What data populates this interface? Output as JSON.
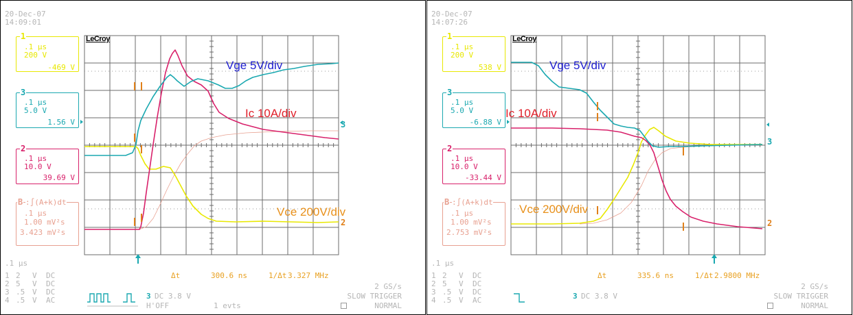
{
  "colors": {
    "ch1": "#e8e800",
    "ch3": "#1aa8b0",
    "ch2": "#d8206a",
    "math": "#e8a090",
    "grid": "#6b6b6b",
    "vge_label": "#1e1ecf",
    "ic_label": "#e0202a",
    "vce_label": "#e8901a",
    "marker": "#e0801a",
    "trigger": "#1aa8b0",
    "gray_text": "#b5b5b5"
  },
  "screens": [
    {
      "date": "20-Dec-07",
      "time": "14:09:01",
      "brand": "LeCroy",
      "channels": {
        "ch1": {
          "num": "1",
          "timebase": ".1 µs",
          "scale": "200 V",
          "value": "-469 V"
        },
        "ch3": {
          "num": "3",
          "timebase": ".1 µs",
          "scale": "5.0 V",
          "value": "1.56 V"
        },
        "ch2": {
          "num": "2",
          "timebase": ".1 µs",
          "scale": "10.0 V",
          "value": "39.69 V"
        },
        "math": {
          "num": "B",
          "formula": ":∫(A+k)dt",
          "timebase": ".1 µs",
          "scale": "1.00 mV²s",
          "value": "3.423 mV²s"
        }
      },
      "labels": {
        "vge": "Vge 5V/div",
        "ic": "Ic 10A/div",
        "vce": "Vce 200V/div"
      },
      "measure": {
        "delta_label": "Δt",
        "delta_value": "300.6 ns",
        "inv_label": "1/Δt",
        "inv_value": "3.327 MHz"
      },
      "bottom": {
        "timebase": ".1 µs",
        "rows": [
          {
            "ch": "1",
            "val": "2",
            "unit": "V",
            "coupling": "DC"
          },
          {
            "ch": "2",
            "val": "5",
            "unit": "V",
            "coupling": "DC"
          },
          {
            "ch": "3",
            "val": ".5",
            "unit": "V",
            "coupling": "DC"
          },
          {
            "ch": "4",
            "val": ".5",
            "unit": "V",
            "coupling": "AC"
          }
        ],
        "trig_ch": "3",
        "trig_text": "DC 3.8 V",
        "hoff": "H'OFF",
        "events": "1 evts",
        "sample_rate": "2 GS/s",
        "trigger_mode": "SLOW TRIGGER",
        "acq_mode": "NORMAL",
        "trig_icon": "pulse-train-icon"
      },
      "traces": {
        "vge": [
          [
            0,
            226
          ],
          [
            60,
            226
          ],
          [
            70,
            222
          ],
          [
            75,
            210
          ],
          [
            78,
            190
          ],
          [
            82,
            175
          ],
          [
            90,
            158
          ],
          [
            100,
            140
          ],
          [
            110,
            125
          ],
          [
            120,
            112
          ],
          [
            125,
            108
          ],
          [
            130,
            112
          ],
          [
            135,
            117
          ],
          [
            145,
            125
          ],
          [
            155,
            118
          ],
          [
            165,
            114
          ],
          [
            180,
            117
          ],
          [
            195,
            123
          ],
          [
            205,
            128
          ],
          [
            215,
            128
          ],
          [
            225,
            124
          ],
          [
            235,
            117
          ],
          [
            245,
            112
          ],
          [
            260,
            108
          ],
          [
            275,
            105
          ],
          [
            290,
            101
          ],
          [
            305,
            99
          ],
          [
            320,
            96
          ],
          [
            340,
            93
          ],
          [
            360,
            92
          ],
          [
            370,
            91
          ]
        ],
        "ic": [
          [
            0,
            334
          ],
          [
            80,
            334
          ],
          [
            82,
            330
          ],
          [
            86,
            310
          ],
          [
            90,
            280
          ],
          [
            95,
            245
          ],
          [
            100,
            210
          ],
          [
            106,
            170
          ],
          [
            112,
            135
          ],
          [
            118,
            105
          ],
          [
            124,
            85
          ],
          [
            128,
            77
          ],
          [
            132,
            72
          ],
          [
            136,
            80
          ],
          [
            142,
            95
          ],
          [
            150,
            110
          ],
          [
            160,
            118
          ],
          [
            170,
            123
          ],
          [
            180,
            132
          ],
          [
            188,
            150
          ],
          [
            196,
            163
          ],
          [
            210,
            172
          ],
          [
            230,
            180
          ],
          [
            260,
            188
          ],
          [
            290,
            192
          ],
          [
            320,
            196
          ],
          [
            350,
            200
          ],
          [
            370,
            202
          ]
        ],
        "vce": [
          [
            0,
            213
          ],
          [
            75,
            213
          ],
          [
            78,
            216
          ],
          [
            82,
            226
          ],
          [
            88,
            238
          ],
          [
            94,
            246
          ],
          [
            104,
            246
          ],
          [
            115,
            242
          ],
          [
            125,
            244
          ],
          [
            132,
            255
          ],
          [
            140,
            270
          ],
          [
            148,
            285
          ],
          [
            158,
            300
          ],
          [
            170,
            312
          ],
          [
            180,
            318
          ],
          [
            192,
            322
          ],
          [
            220,
            323
          ],
          [
            260,
            322
          ],
          [
            300,
            323
          ],
          [
            340,
            324
          ],
          [
            370,
            323
          ]
        ],
        "math": [
          [
            80,
            334
          ],
          [
            90,
            330
          ],
          [
            100,
            318
          ],
          [
            110,
            298
          ],
          [
            120,
            276
          ],
          [
            130,
            256
          ],
          [
            140,
            238
          ],
          [
            150,
            224
          ],
          [
            160,
            212
          ],
          [
            170,
            205
          ],
          [
            185,
            200
          ],
          [
            205,
            196
          ],
          [
            235,
            193
          ],
          [
            280,
            191
          ],
          [
            330,
            190
          ],
          [
            370,
            190
          ]
        ]
      },
      "markers": [
        [
          83,
          125
        ],
        [
          83,
          217
        ],
        [
          83,
          317
        ],
        [
          195,
          125
        ],
        [
          195,
          200
        ],
        [
          195,
          323
        ]
      ],
      "trigger_x": 78,
      "right_arrow_y": 175,
      "right_markers": [
        {
          "num": "3",
          "y": 175
        },
        {
          "num": "2",
          "y": 318
        }
      ],
      "label_pos": {
        "vge": [
          205,
          88
        ],
        "ic": [
          235,
          158
        ],
        "vce": [
          282,
          302
        ]
      }
    },
    {
      "date": "20-Dec-07",
      "time": "14:07:26",
      "brand": "LeCroy",
      "channels": {
        "ch1": {
          "num": "1",
          "timebase": ".1 µs",
          "scale": "200 V",
          "value": "538 V"
        },
        "ch3": {
          "num": "3",
          "timebase": ".1 µs",
          "scale": "5.0 V",
          "value": "-6.88 V"
        },
        "ch2": {
          "num": "2",
          "timebase": ".1 µs",
          "scale": "10.0 V",
          "value": "-33.44 V"
        },
        "math": {
          "num": "B",
          "formula": ":∫(A+k)dt",
          "timebase": ".1 µs",
          "scale": "1.00 mV²s",
          "value": "2.753 mV²s"
        }
      },
      "labels": {
        "vge": "Vge 5V/div",
        "ic": "Ic 10A/div",
        "vce": "Vce 200V/div"
      },
      "measure": {
        "delta_label": "Δt",
        "delta_value": "335.6 ns",
        "inv_label": "1/Δt",
        "inv_value": "2.9800 MHz"
      },
      "bottom": {
        "timebase": ".1 µs",
        "rows": [
          {
            "ch": "1",
            "val": "2",
            "unit": "V",
            "coupling": "DC"
          },
          {
            "ch": "2",
            "val": "5",
            "unit": "V",
            "coupling": "DC"
          },
          {
            "ch": "3",
            "val": ".5",
            "unit": "V",
            "coupling": "DC"
          },
          {
            "ch": "4",
            "val": ".5",
            "unit": "V",
            "coupling": "AC"
          }
        ],
        "trig_ch": "3",
        "trig_text": "DC 3.8 V",
        "hoff": "",
        "events": "",
        "sample_rate": "2 GS/s",
        "trigger_mode": "SLOW TRIGGER",
        "acq_mode": "NORMAL",
        "trig_icon": "falling-edge-icon"
      },
      "traces": {
        "vge": [
          [
            0,
            90
          ],
          [
            30,
            90
          ],
          [
            40,
            95
          ],
          [
            50,
            108
          ],
          [
            60,
            118
          ],
          [
            70,
            126
          ],
          [
            85,
            128
          ],
          [
            100,
            130
          ],
          [
            110,
            135
          ],
          [
            120,
            148
          ],
          [
            130,
            160
          ],
          [
            140,
            170
          ],
          [
            150,
            180
          ],
          [
            160,
            183
          ],
          [
            170,
            185
          ],
          [
            180,
            186
          ],
          [
            188,
            190
          ],
          [
            194,
            198
          ],
          [
            200,
            206
          ],
          [
            206,
            212
          ],
          [
            215,
            214
          ],
          [
            230,
            213
          ],
          [
            250,
            213
          ],
          [
            280,
            212
          ],
          [
            320,
            211
          ],
          [
            366,
            210
          ]
        ],
        "ic": [
          [
            0,
            186
          ],
          [
            60,
            186
          ],
          [
            100,
            187
          ],
          [
            140,
            189
          ],
          [
            160,
            192
          ],
          [
            180,
            198
          ],
          [
            190,
            200
          ],
          [
            196,
            204
          ],
          [
            202,
            210
          ],
          [
            208,
            222
          ],
          [
            214,
            242
          ],
          [
            220,
            262
          ],
          [
            226,
            278
          ],
          [
            232,
            290
          ],
          [
            240,
            300
          ],
          [
            250,
            308
          ],
          [
            262,
            316
          ],
          [
            280,
            322
          ],
          [
            300,
            326
          ],
          [
            330,
            330
          ],
          [
            366,
            333
          ]
        ],
        "vce": [
          [
            0,
            326
          ],
          [
            60,
            326
          ],
          [
            100,
            325
          ],
          [
            120,
            322
          ],
          [
            130,
            318
          ],
          [
            140,
            305
          ],
          [
            150,
            290
          ],
          [
            160,
            274
          ],
          [
            170,
            258
          ],
          [
            178,
            240
          ],
          [
            185,
            222
          ],
          [
            190,
            206
          ],
          [
            196,
            196
          ],
          [
            202,
            188
          ],
          [
            208,
            185
          ],
          [
            215,
            190
          ],
          [
            225,
            198
          ],
          [
            240,
            205
          ],
          [
            260,
            208
          ],
          [
            290,
            210
          ],
          [
            330,
            210
          ],
          [
            366,
            210
          ]
        ],
        "math": [
          [
            100,
            326
          ],
          [
            120,
            325
          ],
          [
            140,
            320
          ],
          [
            160,
            310
          ],
          [
            175,
            295
          ],
          [
            190,
            270
          ],
          [
            200,
            248
          ],
          [
            210,
            232
          ],
          [
            220,
            222
          ],
          [
            232,
            216
          ],
          [
            250,
            214
          ],
          [
            280,
            212
          ],
          [
            320,
            211
          ],
          [
            366,
            210
          ]
        ]
      },
      "markers": [
        [
          248,
          154
        ],
        [
          248,
          170
        ],
        [
          248,
          306
        ],
        [
          373,
          220
        ],
        [
          373,
          330
        ]
      ],
      "trigger_x": 296,
      "right_arrow_y": 178,
      "right_markers": [
        {
          "num": "3",
          "y": 200
        },
        {
          "num": "2",
          "y": 319
        }
      ],
      "label_pos": {
        "vge": [
          178,
          88
        ],
        "ic": [
          115,
          158
        ],
        "vce": [
          134,
          297
        ]
      }
    }
  ]
}
